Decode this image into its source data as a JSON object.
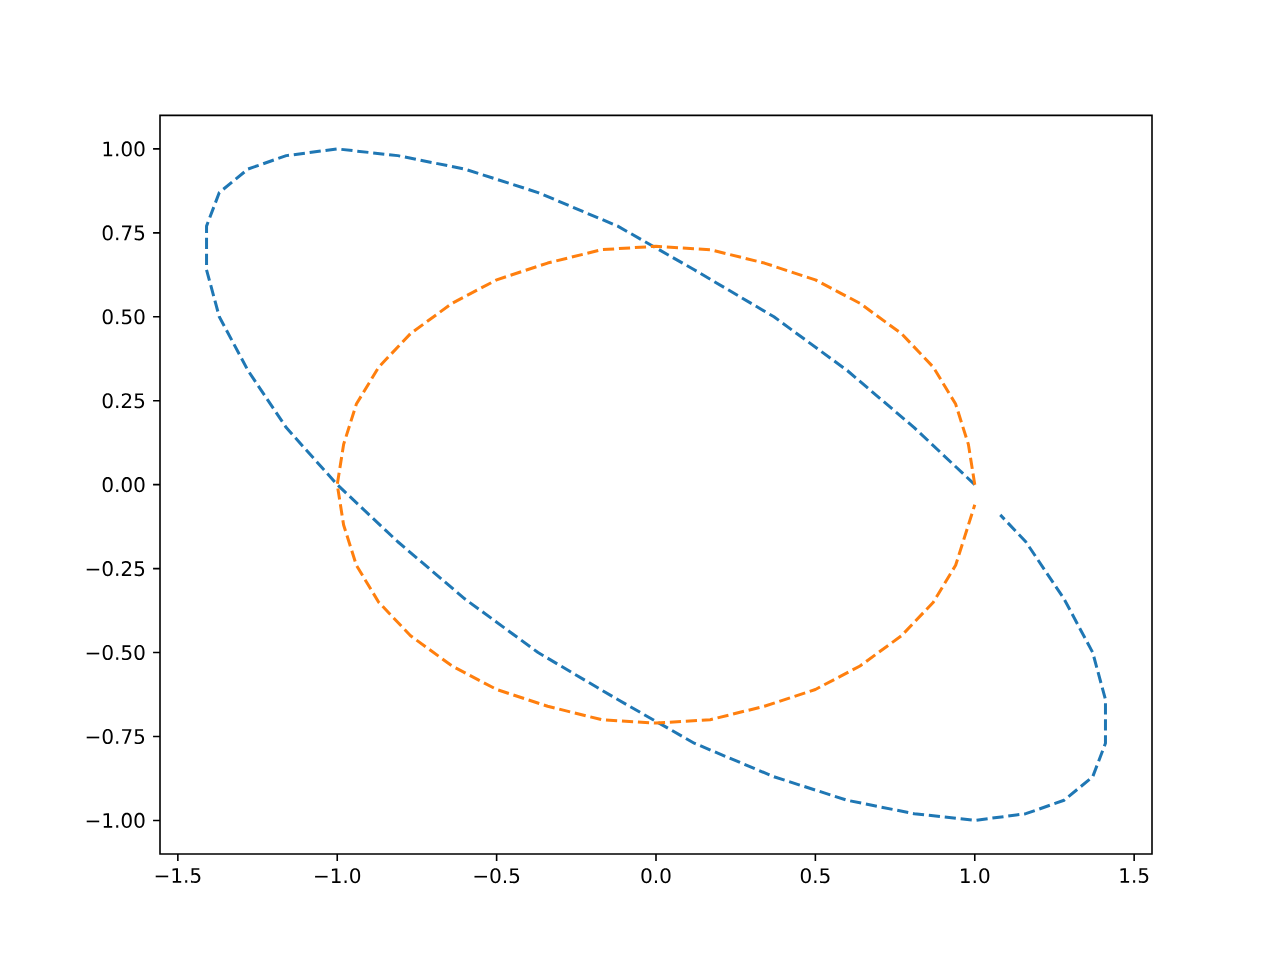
{
  "chart_data": {
    "type": "line",
    "line_style": "dashed",
    "marker": "none",
    "grid": false,
    "xlim": [
      -1.556,
      1.556
    ],
    "ylim": [
      -1.1,
      1.1
    ],
    "xticks": [
      {
        "value": -1.5,
        "label": "−1.5"
      },
      {
        "value": -1.0,
        "label": "−1.0"
      },
      {
        "value": -0.5,
        "label": "−0.5"
      },
      {
        "value": 0,
        "label": "0.0"
      },
      {
        "value": 0.5,
        "label": "0.5"
      },
      {
        "value": 1.0,
        "label": "1.0"
      },
      {
        "value": 1.5,
        "label": "1.5"
      }
    ],
    "yticks": [
      {
        "value": -1.0,
        "label": "−1.00"
      },
      {
        "value": -0.75,
        "label": "−0.75"
      },
      {
        "value": -0.5,
        "label": "−0.50"
      },
      {
        "value": -0.25,
        "label": "−0.25"
      },
      {
        "value": 0,
        "label": "0.00"
      },
      {
        "value": 0.25,
        "label": "0.25"
      },
      {
        "value": 0.5,
        "label": "0.50"
      },
      {
        "value": 0.75,
        "label": "0.75"
      },
      {
        "value": 1.0,
        "label": "1.00"
      }
    ],
    "series": [
      {
        "color": "#1f77b4",
        "x": [
          1,
          0.81,
          0.6,
          0.37,
          0.12,
          -0.12,
          -0.37,
          -0.6,
          -0.81,
          -1,
          -1.16,
          -1.28,
          -1.37,
          -1.41,
          -1.41,
          -1.37,
          -1.28,
          -1.16,
          -1,
          -0.81,
          -0.6,
          -0.37,
          -0.12,
          0.12,
          0.37,
          0.6,
          0.81,
          1,
          1.16,
          1.28,
          1.37,
          1.41,
          1.41,
          1.37,
          1.28,
          1.16,
          1.08
        ],
        "values": [
          0,
          0.17,
          0.34,
          0.5,
          0.64,
          0.77,
          0.87,
          0.94,
          0.98,
          1,
          0.98,
          0.94,
          0.87,
          0.77,
          0.64,
          0.5,
          0.34,
          0.17,
          0,
          -0.17,
          -0.34,
          -0.5,
          -0.64,
          -0.77,
          -0.87,
          -0.94,
          -0.98,
          -1,
          -0.98,
          -0.94,
          -0.87,
          -0.77,
          -0.64,
          -0.5,
          -0.34,
          -0.17,
          -0.09
        ]
      },
      {
        "color": "#ff7f0e",
        "x": [
          1,
          0.98,
          0.94,
          0.87,
          0.77,
          0.64,
          0.5,
          0.34,
          0.17,
          0,
          -0.17,
          -0.34,
          -0.5,
          -0.64,
          -0.77,
          -0.87,
          -0.94,
          -0.98,
          -1,
          -0.98,
          -0.94,
          -0.87,
          -0.77,
          -0.64,
          -0.5,
          -0.34,
          -0.17,
          0,
          0.17,
          0.34,
          0.5,
          0.64,
          0.77,
          0.87,
          0.94,
          0.98,
          1.0
        ],
        "values": [
          0,
          0.12,
          0.24,
          0.35,
          0.45,
          0.54,
          0.61,
          0.66,
          0.7,
          0.71,
          0.7,
          0.66,
          0.61,
          0.54,
          0.45,
          0.35,
          0.24,
          0.12,
          0,
          -0.12,
          -0.24,
          -0.35,
          -0.45,
          -0.54,
          -0.61,
          -0.66,
          -0.7,
          -0.71,
          -0.7,
          -0.66,
          -0.61,
          -0.54,
          -0.45,
          -0.35,
          -0.24,
          -0.12,
          -0.06
        ]
      }
    ]
  }
}
